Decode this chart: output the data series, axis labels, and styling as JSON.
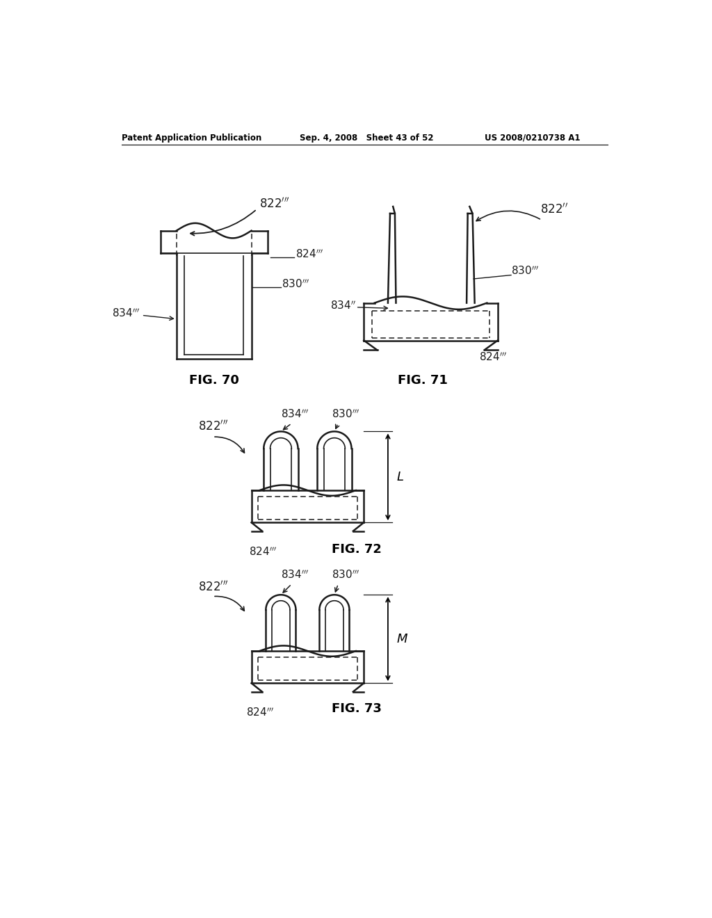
{
  "bg_color": "#ffffff",
  "header_left": "Patent Application Publication",
  "header_mid": "Sep. 4, 2008   Sheet 43 of 52",
  "header_right": "US 2008/0210738 A1",
  "fig70_label": "FIG. 70",
  "fig71_label": "FIG. 71",
  "fig72_label": "FIG. 72",
  "fig73_label": "FIG. 73"
}
